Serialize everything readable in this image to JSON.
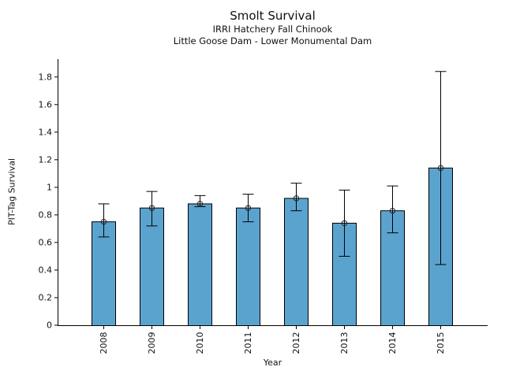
{
  "chart_data": {
    "type": "bar",
    "title": "Smolt Survival",
    "subtitle1": "IRRI Hatchery Fall Chinook",
    "subtitle2": "Little Goose Dam - Lower Monumental Dam",
    "xlabel": "Year",
    "ylabel": "PIT-Tag Survival",
    "categories": [
      "2008",
      "2009",
      "2010",
      "2011",
      "2012",
      "2013",
      "2014",
      "2015"
    ],
    "values": [
      0.75,
      0.85,
      0.88,
      0.85,
      0.92,
      0.74,
      0.83,
      1.14
    ],
    "error_low": [
      0.64,
      0.72,
      0.86,
      0.75,
      0.83,
      0.5,
      0.67,
      0.44
    ],
    "error_high": [
      0.88,
      0.97,
      0.94,
      0.95,
      1.03,
      0.98,
      1.01,
      1.84
    ],
    "yticks": [
      0,
      0.2,
      0.4,
      0.6,
      0.8,
      1,
      1.2,
      1.4,
      1.6,
      1.8
    ],
    "ytick_labels": [
      "0",
      "0.2",
      "0.4",
      "0.6",
      "0.8",
      "1",
      "1.2",
      "1.4",
      "1.6",
      "1.8"
    ],
    "ylim": [
      0,
      1.93
    ],
    "grid": false,
    "legend": null,
    "bar_color": "#5BA3CF",
    "bar_edge_color": "#000000",
    "errorbar_color": "#000000",
    "marker": "open-circle"
  }
}
